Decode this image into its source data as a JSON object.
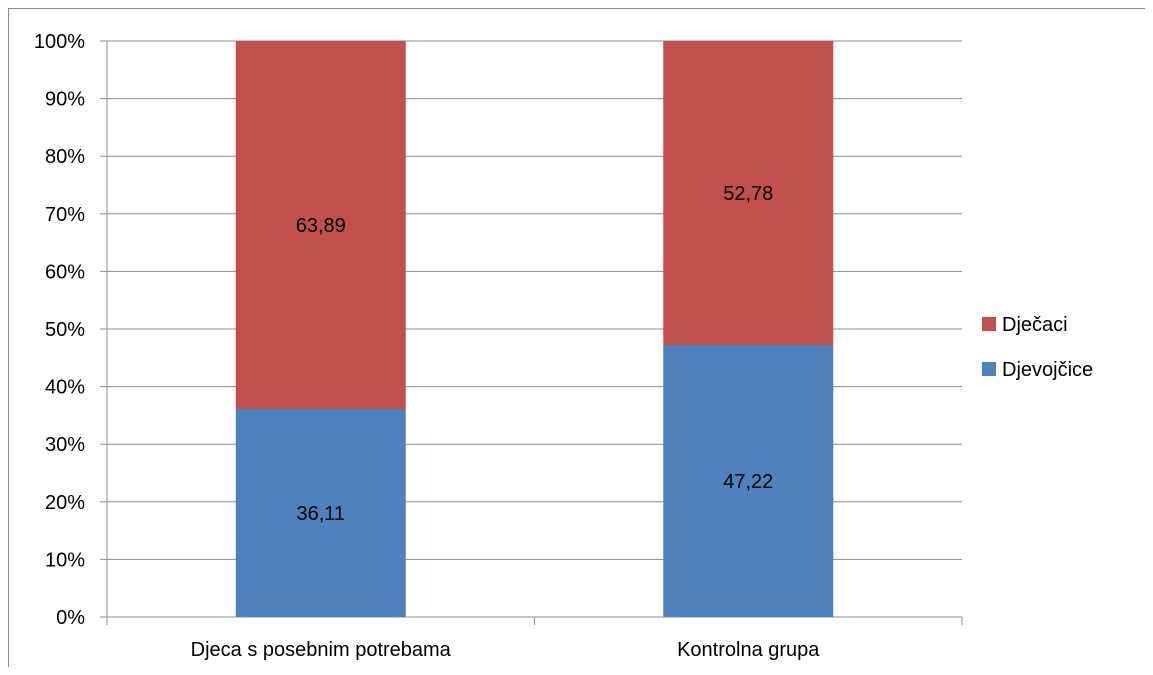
{
  "chart_data": {
    "type": "bar",
    "stacked": true,
    "percent_stacked": true,
    "categories": [
      "Djeca s posebnim potrebama",
      "Kontrolna grupa"
    ],
    "series": [
      {
        "name": "Djevojčice",
        "values": [
          36.11,
          47.22
        ],
        "labels": [
          "36,11",
          "47,22"
        ],
        "color": "#4F81BD"
      },
      {
        "name": "Dječaci",
        "values": [
          63.89,
          52.78
        ],
        "labels": [
          "63,89",
          "52,78"
        ],
        "color": "#C0504D"
      }
    ],
    "y_ticks": [
      "0%",
      "10%",
      "20%",
      "30%",
      "40%",
      "50%",
      "60%",
      "70%",
      "80%",
      "90%",
      "100%"
    ],
    "ylim": [
      0,
      100
    ],
    "grid": true,
    "legend_position": "right",
    "legend_order": [
      "Dječaci",
      "Djevojčice"
    ],
    "title": "",
    "xlabel": "",
    "ylabel": ""
  }
}
